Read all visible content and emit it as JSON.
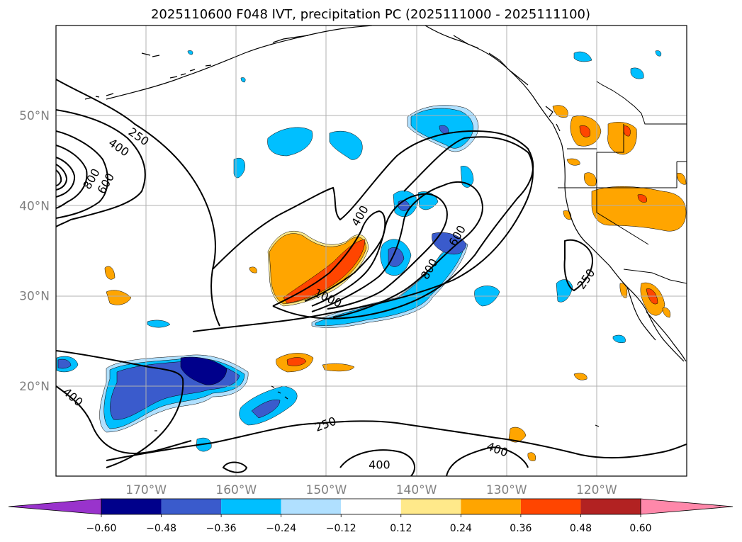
{
  "title": "2025110600 F048 IVT, precipitation PC (2025111000 - 2025111100)",
  "map": {
    "lon_range": [
      -180,
      -110
    ],
    "lat_range": [
      10,
      60
    ],
    "grid": true,
    "x_ticks": [
      {
        "lon": -170,
        "label": "170°W"
      },
      {
        "lon": -160,
        "label": "160°W"
      },
      {
        "lon": -150,
        "label": "150°W"
      },
      {
        "lon": -140,
        "label": "140°W"
      },
      {
        "lon": -130,
        "label": "130°W"
      },
      {
        "lon": -120,
        "label": "120°W"
      }
    ],
    "y_ticks": [
      {
        "lat": 20,
        "label": "20°N"
      },
      {
        "lat": 30,
        "label": "30°N"
      },
      {
        "lat": 40,
        "label": "40°N"
      },
      {
        "lat": 50,
        "label": "50°N"
      }
    ],
    "contour_labels": [
      {
        "text": "250",
        "lon": -170.8,
        "lat": 47.7,
        "rot": 35
      },
      {
        "text": "400",
        "lon": -173.0,
        "lat": 46.5,
        "rot": 35
      },
      {
        "text": "800",
        "lon": -176.1,
        "lat": 43.0,
        "rot": -60
      },
      {
        "text": "600",
        "lon": -174.5,
        "lat": 42.5,
        "rot": -60
      },
      {
        "text": "400",
        "lon": -146.3,
        "lat": 38.9,
        "rot": -60
      },
      {
        "text": "600",
        "lon": -135.5,
        "lat": 36.7,
        "rot": -60
      },
      {
        "text": "800",
        "lon": -138.6,
        "lat": 33.0,
        "rot": -60
      },
      {
        "text": "1000",
        "lon": -149.8,
        "lat": 29.8,
        "rot": 25
      },
      {
        "text": "250",
        "lon": -121.2,
        "lat": 31.9,
        "rot": -55
      },
      {
        "text": "400",
        "lon": -178.1,
        "lat": 18.8,
        "rot": 40
      },
      {
        "text": "250",
        "lon": -150.1,
        "lat": 15.8,
        "rot": -20
      },
      {
        "text": "400",
        "lon": -131.0,
        "lat": 13.0,
        "rot": 20
      },
      {
        "text": "400",
        "lon": -144.1,
        "lat": 11.3,
        "rot": 0
      }
    ]
  },
  "colorbar": {
    "levels": [
      "−0.60",
      "−0.48",
      "−0.36",
      "−0.24",
      "−0.12",
      "0.12",
      "0.24",
      "0.36",
      "0.48",
      "0.60"
    ],
    "colors": [
      "#9933cc",
      "#00008b",
      "#3a5bcc",
      "#00bfff",
      "#b0e0ff",
      "#ffffff",
      "#ffe98a",
      "#ffa500",
      "#ff4500",
      "#b22222",
      "#ff88aa"
    ]
  }
}
